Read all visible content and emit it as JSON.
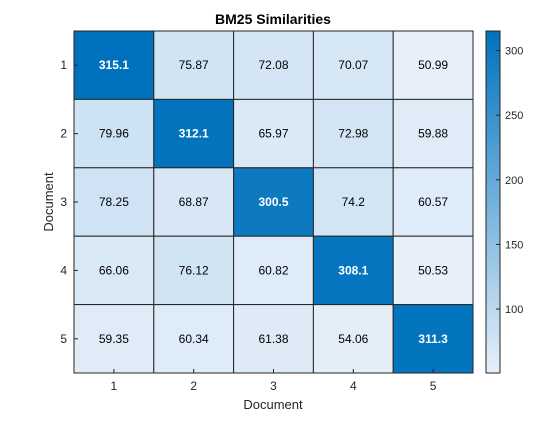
{
  "chart_data": {
    "type": "heatmap",
    "title": "BM25 Similarities",
    "xlabel": "Document",
    "ylabel": "Document",
    "x_categories": [
      "1",
      "2",
      "3",
      "4",
      "5"
    ],
    "y_categories": [
      "1",
      "2",
      "3",
      "4",
      "5"
    ],
    "values": [
      [
        315.1,
        75.87,
        72.08,
        70.07,
        50.99
      ],
      [
        79.96,
        312.1,
        65.97,
        72.98,
        59.88
      ],
      [
        78.25,
        68.87,
        300.5,
        74.2,
        60.57
      ],
      [
        66.06,
        76.12,
        60.82,
        308.1,
        50.53
      ],
      [
        59.35,
        60.34,
        61.38,
        54.06,
        311.3
      ]
    ],
    "value_labels": [
      [
        "315.1",
        "75.87",
        "72.08",
        "70.07",
        "50.99"
      ],
      [
        "79.96",
        "312.1",
        "65.97",
        "72.98",
        "59.88"
      ],
      [
        "78.25",
        "68.87",
        "300.5",
        "74.2",
        "60.57"
      ],
      [
        "66.06",
        "76.12",
        "60.82",
        "308.1",
        "50.53"
      ],
      [
        "59.35",
        "60.34",
        "61.38",
        "54.06",
        "311.3"
      ]
    ],
    "colorbar": {
      "ticks": [
        "100",
        "150",
        "200",
        "250",
        "300"
      ],
      "tick_values": [
        100,
        150,
        200,
        250,
        300
      ],
      "range": [
        50.53,
        315.1
      ]
    },
    "colors": {
      "low": "#e7f0fa",
      "high": "#0072bd",
      "grid": "#262626",
      "text_dark": "#000000",
      "text_light": "#ffffff"
    },
    "grid": true
  }
}
